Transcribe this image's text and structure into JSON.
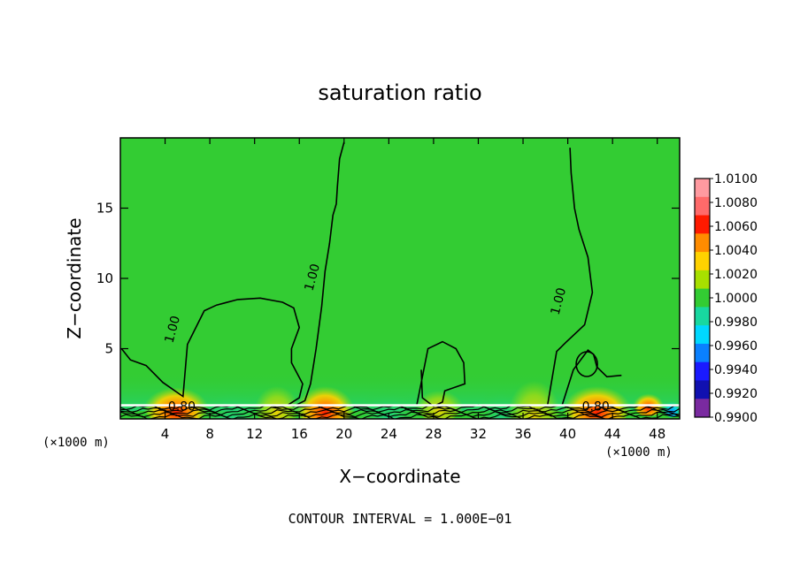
{
  "chart_data": {
    "type": "heatmap",
    "title": "saturation ratio",
    "xlabel": "X−coordinate",
    "ylabel": "Z−coordinate",
    "x_unit_left": "(×1000 m)",
    "x_unit_right": "(×1000 m)",
    "footer": "CONTOUR INTERVAL = 1.000E−01",
    "xlim": [
      0,
      50
    ],
    "ylim": [
      0,
      20
    ],
    "x_ticks": [
      "4",
      "8",
      "12",
      "16",
      "20",
      "24",
      "28",
      "32",
      "36",
      "40",
      "44",
      "48"
    ],
    "x_tick_values": [
      4,
      8,
      12,
      16,
      20,
      24,
      28,
      32,
      36,
      40,
      44,
      48
    ],
    "y_ticks": [
      "5",
      "10",
      "15"
    ],
    "y_tick_values": [
      5,
      10,
      15
    ],
    "colorbar": {
      "labels": [
        "1.0100",
        "1.0080",
        "1.0060",
        "1.0040",
        "1.0020",
        "1.0000",
        "0.9980",
        "0.9960",
        "0.9940",
        "0.9920",
        "0.9900"
      ],
      "colors": [
        "#ff9aa0",
        "#ff6a6a",
        "#ff1a00",
        "#ff8c00",
        "#ffd200",
        "#a8e000",
        "#33cc33",
        "#18d8a0",
        "#00d8ff",
        "#0a80ff",
        "#1a1aff",
        "#1010b0",
        "#7a2aa0"
      ]
    },
    "background_value": "1.0000",
    "contour_interval": 0.1,
    "contour_labels": [
      {
        "text": "1.00",
        "x": 5.0,
        "y": 6.3
      },
      {
        "text": "1.00",
        "x": 17.5,
        "y": 10.0
      },
      {
        "text": "1.00",
        "x": 39.5,
        "y": 8.3
      },
      {
        "text": "0.80",
        "x": 5.5,
        "y": 0.6
      },
      {
        "text": "0.80",
        "x": 42.5,
        "y": 0.6
      }
    ],
    "contours_s_equals_1": [
      {
        "x": [
          0.1,
          0.9,
          2.3,
          3.8,
          5.6,
          6.0,
          7.5,
          8.6,
          10.5,
          12.5,
          14.5,
          15.5,
          16.0,
          15.3,
          15.3,
          16.3,
          16.0,
          15.0,
          15.5,
          16.5,
          17.0,
          17.5,
          18.0,
          18.3,
          18.7,
          19.0,
          19.3,
          19.4,
          19.6,
          20.0
        ],
        "y": [
          5.0,
          4.2,
          3.8,
          2.6,
          1.6,
          5.3,
          7.7,
          8.1,
          8.5,
          8.6,
          8.3,
          7.9,
          6.5,
          5.0,
          4.0,
          2.5,
          1.5,
          1.0,
          0.9,
          1.3,
          2.5,
          5.0,
          8.0,
          10.5,
          12.5,
          14.5,
          15.3,
          16.5,
          18.5,
          19.7
        ]
      },
      {
        "x": [
          26.5,
          27.5,
          28.8,
          30.0,
          30.7,
          30.8,
          29.0,
          28.8,
          28.0,
          27.0,
          26.9
        ],
        "y": [
          1.0,
          5.0,
          5.5,
          5.0,
          4.0,
          2.5,
          2.0,
          1.2,
          0.9,
          1.5,
          3.5
        ]
      },
      {
        "x": [
          38.2,
          39.0,
          39.9,
          41.5,
          42.2,
          41.8,
          41.0,
          40.6,
          40.3,
          40.2,
          39.5,
          40.5,
          41.8,
          42.3,
          42.6,
          43.5,
          44.8
        ],
        "y": [
          1.0,
          4.8,
          5.5,
          6.7,
          9.0,
          11.5,
          13.5,
          15.0,
          17.5,
          19.3,
          1.0,
          3.5,
          4.9,
          4.6,
          3.7,
          3.0,
          3.1
        ]
      }
    ]
  }
}
